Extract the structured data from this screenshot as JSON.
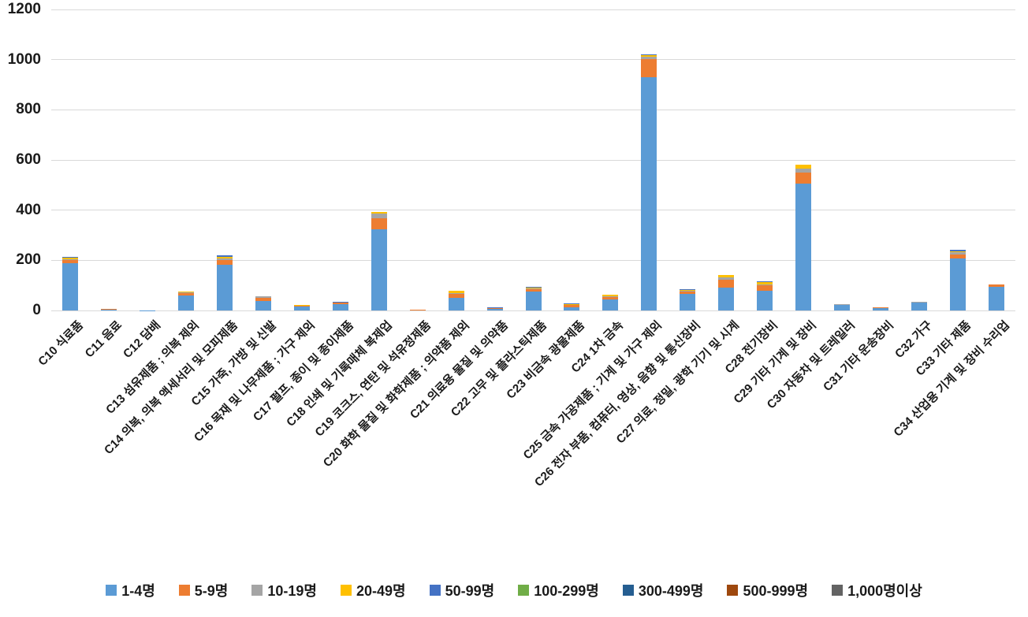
{
  "chart_data": {
    "type": "bar",
    "stacked": true,
    "grid": "horizontal",
    "legend_position": "bottom",
    "ylim": [
      0,
      1200
    ],
    "yticks": [
      0,
      200,
      400,
      600,
      800,
      1000,
      1200
    ],
    "categories": [
      "C10 식료품",
      "C11 음료",
      "C12 담배",
      "C13 섬유제품 ; 의복 제외",
      "C14 의복, 의복 액세서리 및 모피제품",
      "C15 가죽, 가방 및 신발",
      "C16 목재 및 나무제품 ; 가구 제외",
      "C17 펄프, 종이 및 종이제품",
      "C18 인쇄 및 기록매체 복제업",
      "C19 코크스, 연탄 및 석유정제품",
      "C20 화학 물질 및 화학제품 ; 의약품 제외",
      "C21 의료용 물질 및 의약품",
      "C22 고무 및 플라스틱제품",
      "C23 비금속 광물제품",
      "C24 1차 금속",
      "C25 금속 가공제품 ; 기계 및 가구 제외",
      "C26 전자 부품, 컴퓨터, 영상, 음향 및 통신장비",
      "C27 의료, 정밀, 광학 기기 및 시계",
      "C28 전기장비",
      "C29 기타 기계 및 장비",
      "C30 자동차 및 트레일러",
      "C31 기타 운송장비",
      "C32 가구",
      "C33 기타 제품",
      "C34 산업용 기계 및 장비 수리업"
    ],
    "series": [
      {
        "name": "1-4명",
        "color": "#5B9BD5",
        "values": [
          190,
          4,
          1,
          59,
          181,
          38,
          16,
          25,
          325,
          3,
          51,
          9,
          76,
          13,
          44,
          930,
          65,
          91,
          78,
          505,
          22,
          11,
          31,
          207,
          93
        ]
      },
      {
        "name": "5-9명",
        "color": "#ED7D31",
        "values": [
          12,
          1,
          0,
          9,
          19,
          12,
          2,
          6,
          42,
          1,
          15,
          1,
          9,
          8,
          12,
          72,
          11,
          31,
          22,
          44,
          2,
          1,
          3,
          17,
          10
        ]
      },
      {
        "name": "10-19명",
        "color": "#A5A5A5",
        "values": [
          3,
          0,
          0,
          3,
          6,
          5,
          0,
          2,
          20,
          0,
          4,
          1,
          4,
          3,
          2,
          10,
          4,
          9,
          4,
          18,
          1,
          0,
          1,
          8,
          0
        ]
      },
      {
        "name": "20-49명",
        "color": "#FFC000",
        "values": [
          5,
          0,
          0,
          4,
          9,
          0,
          3,
          0,
          6,
          0,
          7,
          0,
          2,
          2,
          6,
          7,
          2,
          9,
          9,
          14,
          0,
          0,
          0,
          5,
          0
        ]
      },
      {
        "name": "50-99명",
        "color": "#4472C4",
        "values": [
          3,
          0,
          0,
          0,
          6,
          0,
          0,
          3,
          0,
          0,
          0,
          1,
          3,
          2,
          0,
          3,
          4,
          0,
          3,
          0,
          0,
          0,
          0,
          4,
          0
        ]
      },
      {
        "name": "100-299명",
        "color": "#70AD47",
        "values": [
          0,
          0,
          0,
          0,
          0,
          0,
          0,
          0,
          0,
          0,
          0,
          0,
          0,
          0,
          0,
          0,
          0,
          0,
          0,
          0,
          0,
          0,
          0,
          0,
          0
        ]
      },
      {
        "name": "300-499명",
        "color": "#255E91",
        "values": [
          0,
          0,
          0,
          0,
          0,
          0,
          0,
          0,
          0,
          0,
          0,
          0,
          0,
          0,
          0,
          0,
          0,
          0,
          0,
          0,
          0,
          0,
          0,
          0,
          0
        ]
      },
      {
        "name": "500-999명",
        "color": "#9E480E",
        "values": [
          0,
          0,
          0,
          0,
          0,
          0,
          0,
          0,
          0,
          0,
          0,
          0,
          0,
          0,
          0,
          0,
          0,
          0,
          0,
          0,
          0,
          0,
          0,
          0,
          0
        ]
      },
      {
        "name": "1,000명이상",
        "color": "#636363",
        "values": [
          0,
          0,
          0,
          0,
          0,
          0,
          0,
          0,
          0,
          0,
          0,
          0,
          0,
          0,
          0,
          0,
          0,
          0,
          0,
          0,
          0,
          0,
          0,
          0,
          0
        ]
      }
    ]
  }
}
